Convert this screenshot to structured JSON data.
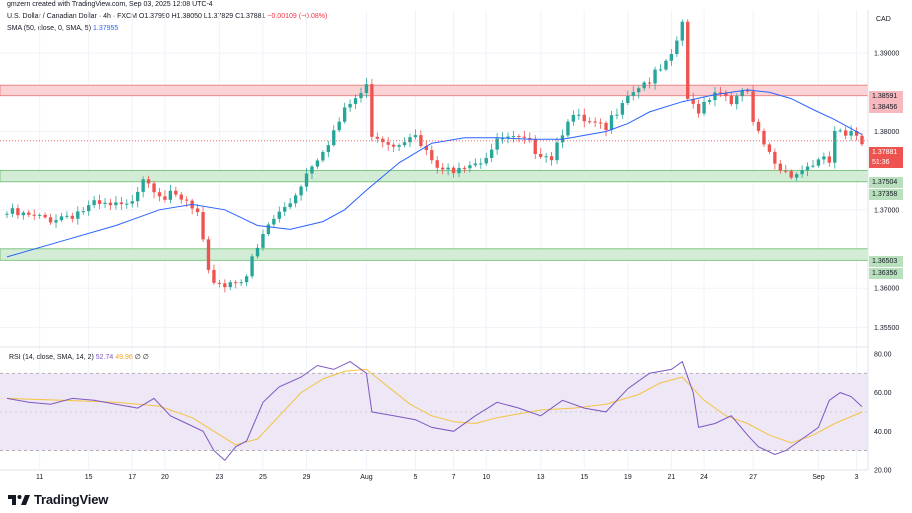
{
  "header": {
    "credit": "gmzern created with TradingView.com, Sep 03, 2025 12:08 UTC-4",
    "symbol": "U.S. Dollar / Canadian Dollar · 4h · FXCM",
    "ohlc": {
      "open": "O1.37990",
      "high": "H1.38050",
      "low": "L1.37829",
      "close": "C1.37881",
      "change": "−0.00109 (−0.08%)"
    },
    "sma_label": "SMA (50, close, 0, SMA, 5)",
    "sma_value": "1.37955",
    "currency": "CAD"
  },
  "rsi_panel": {
    "label": "RSI (14, close, SMA, 14, 2)",
    "rsi_value": "52.74",
    "ma_value": "49.96",
    "extra": "∅ ∅"
  },
  "price_boxes": {
    "zone_upper_top": "1.38591",
    "zone_upper_bottom": "1.38456",
    "last_price": "1.37881",
    "countdown": "51:36",
    "zone_mid_top": "1.37504",
    "zone_mid_bottom": "1.37358",
    "zone_low_top": "1.36503",
    "zone_low_bottom": "1.36356"
  },
  "branding": {
    "logo_text": "TradingView"
  },
  "colors": {
    "up": "#26a69a",
    "down": "#ef5350",
    "sma": "#2962ff",
    "rsi": "#7e57c2",
    "rsi_ma": "#f5c342",
    "resistance_fill": "#fbd3d6",
    "support_fill": "#d3ecd5"
  },
  "chart_data": {
    "type": "candlestick",
    "title": "U.S. Dollar / Canadian Dollar · 4h · FXCM",
    "ylim": [
      1.3525,
      1.3955
    ],
    "y_ticks": [
      "1.39000",
      "1.38000",
      "1.37000",
      "1.36000",
      "1.35500"
    ],
    "y_tick_values": [
      1.39,
      1.38,
      1.37,
      1.36,
      1.355
    ],
    "x_ticks": [
      "11",
      "15",
      "17",
      "20",
      "23",
      "25",
      "29",
      "Aug",
      "5",
      "7",
      "10",
      "13",
      "15",
      "19",
      "21",
      "24",
      "27",
      "Sep",
      "3"
    ],
    "x_tick_index": [
      6,
      15,
      23,
      29,
      39,
      47,
      55,
      66,
      75,
      82,
      88,
      98,
      106,
      114,
      122,
      128,
      137,
      149,
      156
    ],
    "zones": [
      {
        "kind": "resistance",
        "top": 1.38591,
        "bottom": 1.38456
      },
      {
        "kind": "support",
        "top": 1.37504,
        "bottom": 1.37358
      },
      {
        "kind": "support",
        "top": 1.36503,
        "bottom": 1.36356
      }
    ],
    "last_price": 1.37881,
    "close_path": [
      [
        0,
        1.3695
      ],
      [
        6,
        1.3688
      ],
      [
        10,
        1.3692
      ],
      [
        16,
        1.3704
      ],
      [
        22,
        1.3702
      ],
      [
        25,
        1.3745
      ],
      [
        29,
        1.3718
      ],
      [
        33,
        1.3708
      ],
      [
        35,
        1.3692
      ],
      [
        37,
        1.3615
      ],
      [
        40,
        1.3605
      ],
      [
        44,
        1.3618
      ],
      [
        48,
        1.368
      ],
      [
        52,
        1.371
      ],
      [
        56,
        1.376
      ],
      [
        60,
        1.38
      ],
      [
        63,
        1.3835
      ],
      [
        66,
        1.3855
      ],
      [
        67,
        1.38
      ],
      [
        71,
        1.3785
      ],
      [
        74,
        1.38
      ],
      [
        77,
        1.377
      ],
      [
        80,
        1.3745
      ],
      [
        83,
        1.376
      ],
      [
        87,
        1.3765
      ],
      [
        91,
        1.379
      ],
      [
        95,
        1.3785
      ],
      [
        100,
        1.377
      ],
      [
        103,
        1.382
      ],
      [
        106,
        1.381
      ],
      [
        110,
        1.38
      ],
      [
        113,
        1.3845
      ],
      [
        116,
        1.386
      ],
      [
        119,
        1.387
      ],
      [
        122,
        1.389
      ],
      [
        124,
        1.394
      ],
      [
        125,
        1.3835
      ],
      [
        127,
        1.383
      ],
      [
        130,
        1.3855
      ],
      [
        134,
        1.384
      ],
      [
        136,
        1.385
      ],
      [
        137,
        1.3805
      ],
      [
        140,
        1.377
      ],
      [
        142,
        1.3752
      ],
      [
        145,
        1.3748
      ],
      [
        148,
        1.376
      ],
      [
        151,
        1.376
      ],
      [
        152,
        1.38
      ],
      [
        154,
        1.379
      ],
      [
        156,
        1.3795
      ],
      [
        157,
        1.3788
      ]
    ],
    "sma_path": [
      [
        0,
        1.364
      ],
      [
        10,
        1.366
      ],
      [
        20,
        1.368
      ],
      [
        28,
        1.37
      ],
      [
        34,
        1.3707
      ],
      [
        40,
        1.37
      ],
      [
        46,
        1.368
      ],
      [
        52,
        1.3675
      ],
      [
        58,
        1.3685
      ],
      [
        62,
        1.37
      ],
      [
        66,
        1.3725
      ],
      [
        72,
        1.376
      ],
      [
        78,
        1.3785
      ],
      [
        84,
        1.3792
      ],
      [
        90,
        1.3792
      ],
      [
        96,
        1.379
      ],
      [
        102,
        1.379
      ],
      [
        106,
        1.3795
      ],
      [
        110,
        1.38
      ],
      [
        114,
        1.381
      ],
      [
        118,
        1.3825
      ],
      [
        124,
        1.3838
      ],
      [
        130,
        1.3847
      ],
      [
        136,
        1.3853
      ],
      [
        140,
        1.385
      ],
      [
        144,
        1.3842
      ],
      [
        148,
        1.3828
      ],
      [
        152,
        1.3815
      ],
      [
        157,
        1.3796
      ]
    ],
    "rsi": {
      "ylim": [
        20,
        82
      ],
      "y_ticks": [
        "80.00",
        "60.00",
        "40.00",
        "20.00"
      ],
      "y_tick_values": [
        80,
        60,
        40,
        20
      ],
      "band": [
        30,
        70
      ],
      "midline": 50,
      "path": [
        [
          0,
          57
        ],
        [
          4,
          55
        ],
        [
          8,
          54
        ],
        [
          12,
          57
        ],
        [
          16,
          56
        ],
        [
          20,
          54
        ],
        [
          24,
          52
        ],
        [
          27,
          57
        ],
        [
          30,
          48
        ],
        [
          33,
          44
        ],
        [
          36,
          40
        ],
        [
          38,
          30
        ],
        [
          40,
          25
        ],
        [
          42,
          32
        ],
        [
          44,
          35
        ],
        [
          47,
          55
        ],
        [
          50,
          63
        ],
        [
          54,
          68
        ],
        [
          57,
          74
        ],
        [
          60,
          72
        ],
        [
          63,
          76
        ],
        [
          66,
          70
        ],
        [
          67,
          50
        ],
        [
          71,
          48
        ],
        [
          75,
          46
        ],
        [
          78,
          42
        ],
        [
          82,
          40
        ],
        [
          86,
          48
        ],
        [
          90,
          55
        ],
        [
          94,
          52
        ],
        [
          98,
          48
        ],
        [
          102,
          56
        ],
        [
          106,
          52
        ],
        [
          110,
          50
        ],
        [
          114,
          62
        ],
        [
          118,
          70
        ],
        [
          122,
          72
        ],
        [
          124,
          76
        ],
        [
          126,
          60
        ],
        [
          127,
          42
        ],
        [
          130,
          44
        ],
        [
          133,
          48
        ],
        [
          136,
          38
        ],
        [
          138,
          32
        ],
        [
          141,
          28
        ],
        [
          143,
          30
        ],
        [
          146,
          36
        ],
        [
          149,
          42
        ],
        [
          151,
          56
        ],
        [
          153,
          60
        ],
        [
          155,
          58
        ],
        [
          157,
          52.74
        ]
      ],
      "ma_path": [
        [
          0,
          57
        ],
        [
          10,
          56
        ],
        [
          20,
          55
        ],
        [
          28,
          53
        ],
        [
          34,
          47
        ],
        [
          38,
          40
        ],
        [
          42,
          33
        ],
        [
          46,
          36
        ],
        [
          50,
          48
        ],
        [
          54,
          60
        ],
        [
          58,
          67
        ],
        [
          62,
          71
        ],
        [
          66,
          72
        ],
        [
          70,
          63
        ],
        [
          74,
          54
        ],
        [
          78,
          48
        ],
        [
          82,
          45
        ],
        [
          86,
          44
        ],
        [
          90,
          47
        ],
        [
          94,
          49
        ],
        [
          98,
          51
        ],
        [
          104,
          52
        ],
        [
          110,
          54
        ],
        [
          116,
          59
        ],
        [
          120,
          65
        ],
        [
          124,
          68
        ],
        [
          128,
          56
        ],
        [
          132,
          48
        ],
        [
          136,
          44
        ],
        [
          140,
          38
        ],
        [
          144,
          34
        ],
        [
          148,
          38
        ],
        [
          152,
          44
        ],
        [
          157,
          49.96
        ]
      ]
    }
  }
}
